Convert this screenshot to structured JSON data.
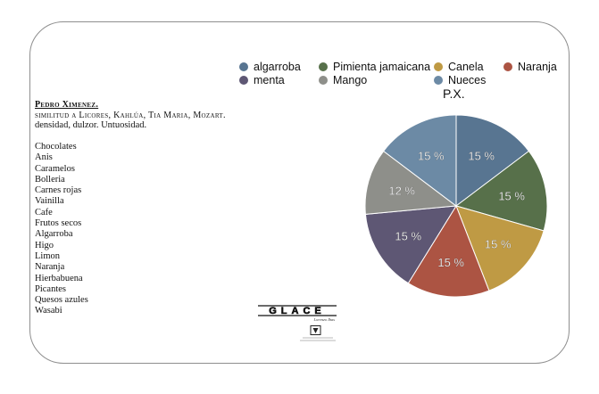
{
  "document": {
    "title": "Pedro Ximenez.",
    "subtitle": "similitud a Licores, Kahlúa, Tia Maria, Mozart.",
    "description": "densidad, dulzor. Untuosidad.",
    "notes": [
      "Chocolates",
      "Anis",
      "Caramelos",
      "Bolleria",
      "Carnes rojas",
      "Vainilla",
      "Cafe",
      "Frutos secos",
      "Algarroba",
      "Higo",
      "Limon",
      "Naranja",
      "Hierbabuena",
      "Picantes",
      "Quesos azules",
      "Wasabi"
    ]
  },
  "logo": {
    "text": "GLACE",
    "tagline": "Lorenzo Ibas",
    "icon": "vase-seal-icon"
  },
  "chart_data": {
    "type": "pie",
    "title": "P.X.",
    "legend_position": "top",
    "categories": [
      "algarroba",
      "Pimienta jamaicana",
      "Canela",
      "Naranja",
      "menta",
      "Mango",
      "Nueces"
    ],
    "values": [
      15,
      15,
      15,
      15,
      15,
      12,
      15
    ],
    "labels": [
      "15 %",
      "15 %",
      "15 %",
      "15 %",
      "15 %",
      "12 %",
      "15 %"
    ],
    "colors": [
      "#587591",
      "#57704a",
      "#bf9a44",
      "#ac5443",
      "#5e5774",
      "#8e8f8a",
      "#6c8aa5"
    ]
  }
}
